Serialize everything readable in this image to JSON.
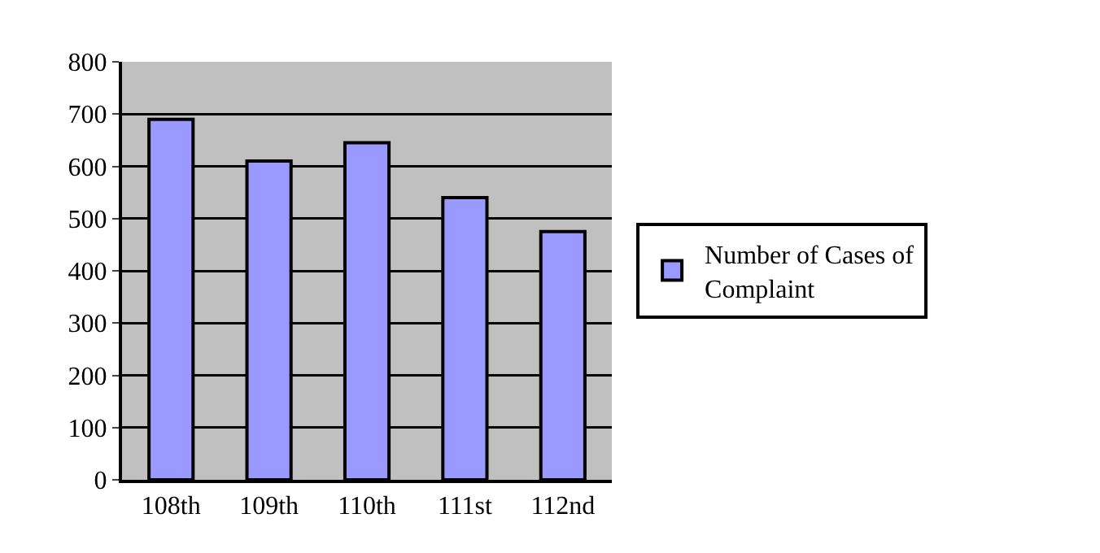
{
  "chart_data": {
    "type": "bar",
    "categories": [
      "108th",
      "109th",
      "110th",
      "111st",
      "112nd"
    ],
    "series": [
      {
        "name": "Number of Cases of Complaint",
        "color": "#9999ff",
        "values": [
          690,
          610,
          645,
          540,
          475
        ]
      }
    ],
    "ylim": [
      0,
      800
    ],
    "yticks": [
      0,
      100,
      200,
      300,
      400,
      500,
      600,
      700,
      800
    ],
    "grid": "y",
    "legend": "right"
  }
}
